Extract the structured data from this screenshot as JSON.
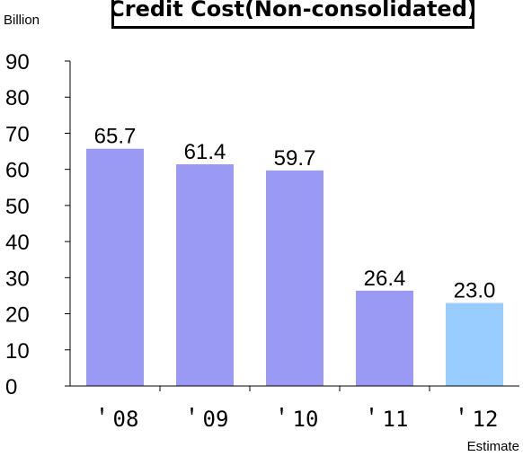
{
  "chart_data": {
    "type": "bar",
    "title": "Credit Cost(Non-consolidated)",
    "ylabel": "Billion",
    "ylim": [
      0,
      90
    ],
    "yticks": [
      0,
      10,
      20,
      30,
      40,
      50,
      60,
      70,
      80,
      90
    ],
    "categories": [
      " '08",
      "'09",
      "'10",
      "'11",
      "'12"
    ],
    "category_labels": [
      "＇08",
      "＇09",
      "＇10",
      "＇11",
      "＇12"
    ],
    "values": [
      65.7,
      61.4,
      59.7,
      26.4,
      23.0
    ],
    "value_labels": [
      "65.7",
      "61.4",
      "59.7",
      "26.4",
      "23.0"
    ],
    "bar_colors": [
      "#9a9af5",
      "#9a9af5",
      "#9a9af5",
      "#9a9af5",
      "#99ccff"
    ],
    "annotation": "Estimate",
    "grid": false,
    "legend": "none"
  }
}
